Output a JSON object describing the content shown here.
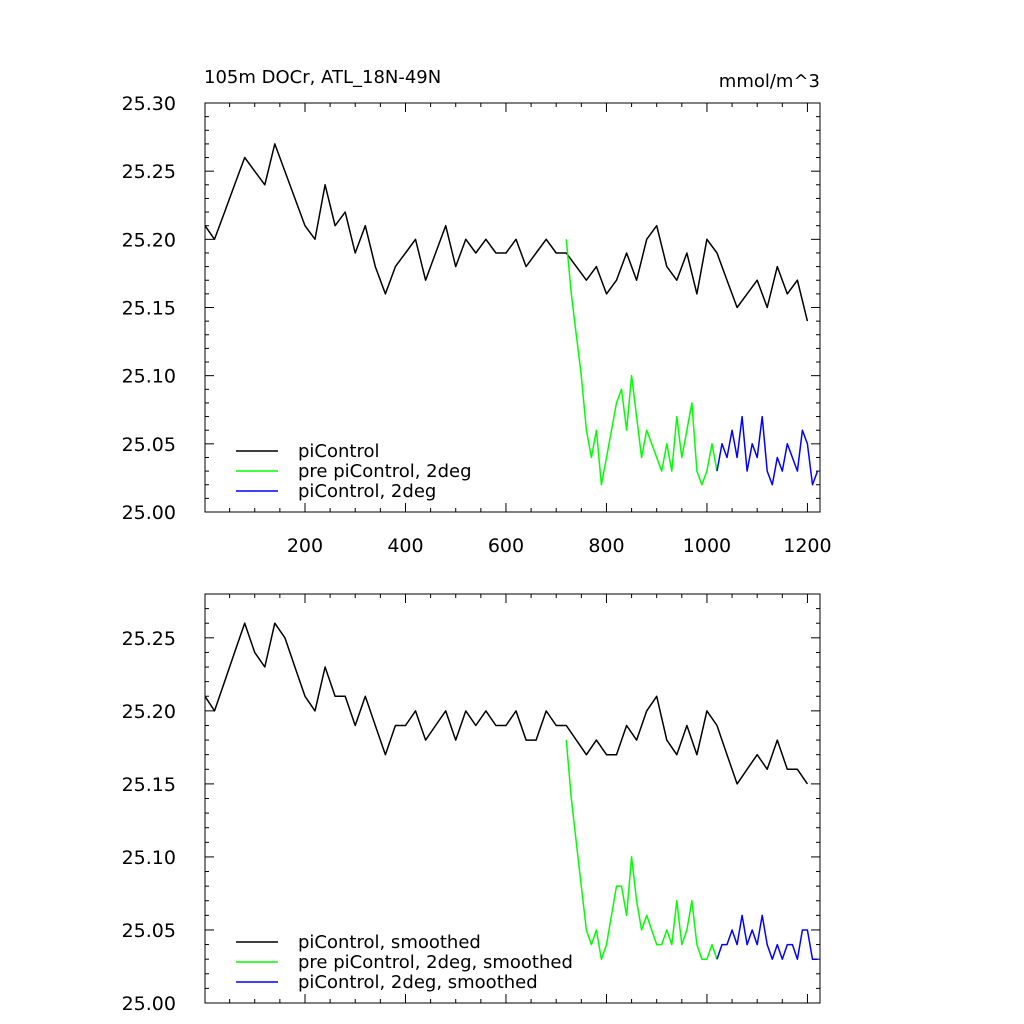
{
  "chart_data": [
    {
      "type": "line",
      "title": "105m DOCr, ATL_18N-49N",
      "units": "mmol/m^3",
      "xlim": [
        1,
        1225
      ],
      "ylim": [
        25.0,
        25.3
      ],
      "xticks": [
        200,
        400,
        600,
        800,
        1000,
        1200
      ],
      "yticks": [
        25.0,
        25.05,
        25.1,
        25.15,
        25.2,
        25.25,
        25.3
      ],
      "x_tick_labels": [
        "200",
        "400",
        "600",
        "800",
        "1000",
        "1200"
      ],
      "y_tick_labels": [
        "25.00",
        "25.05",
        "25.10",
        "25.15",
        "25.20",
        "25.25",
        "25.30"
      ],
      "legend_position": "bottom-left",
      "grid": false,
      "series": [
        {
          "name": "piControl",
          "color": "#000000",
          "x": [
            1,
            20,
            40,
            60,
            80,
            100,
            120,
            140,
            160,
            180,
            200,
            220,
            240,
            260,
            280,
            300,
            320,
            340,
            360,
            380,
            400,
            420,
            440,
            460,
            480,
            500,
            520,
            540,
            560,
            580,
            600,
            620,
            640,
            660,
            680,
            700,
            720,
            740,
            760,
            780,
            800,
            820,
            840,
            860,
            880,
            900,
            920,
            940,
            960,
            980,
            1000,
            1020,
            1040,
            1060,
            1080,
            1100,
            1120,
            1140,
            1160,
            1180,
            1200
          ],
          "y": [
            25.21,
            25.2,
            25.22,
            25.24,
            25.26,
            25.25,
            25.24,
            25.27,
            25.25,
            25.23,
            25.21,
            25.2,
            25.24,
            25.21,
            25.22,
            25.19,
            25.21,
            25.18,
            25.16,
            25.18,
            25.19,
            25.2,
            25.17,
            25.19,
            25.21,
            25.18,
            25.2,
            25.19,
            25.2,
            25.19,
            25.19,
            25.2,
            25.18,
            25.19,
            25.2,
            25.19,
            25.19,
            25.18,
            25.17,
            25.18,
            25.16,
            25.17,
            25.19,
            25.17,
            25.2,
            25.21,
            25.18,
            25.17,
            25.19,
            25.16,
            25.2,
            25.19,
            25.17,
            25.15,
            25.16,
            25.17,
            25.15,
            25.18,
            25.16,
            25.17,
            25.14
          ]
        },
        {
          "name": "pre piControl, 2deg",
          "color": "#00ff00",
          "x": [
            720,
            730,
            740,
            750,
            760,
            770,
            780,
            790,
            800,
            810,
            820,
            830,
            840,
            850,
            860,
            870,
            880,
            890,
            900,
            910,
            920,
            930,
            940,
            950,
            960,
            970,
            980,
            990,
            1000,
            1010,
            1020
          ],
          "y": [
            25.2,
            25.16,
            25.13,
            25.1,
            25.06,
            25.04,
            25.06,
            25.02,
            25.04,
            25.06,
            25.08,
            25.09,
            25.06,
            25.1,
            25.07,
            25.04,
            25.06,
            25.05,
            25.04,
            25.03,
            25.05,
            25.03,
            25.07,
            25.04,
            25.06,
            25.08,
            25.03,
            25.02,
            25.03,
            25.05,
            25.03
          ]
        },
        {
          "name": "piControl, 2deg",
          "color": "#0000ff",
          "x": [
            1020,
            1030,
            1040,
            1050,
            1060,
            1070,
            1080,
            1090,
            1100,
            1110,
            1120,
            1130,
            1140,
            1150,
            1160,
            1170,
            1180,
            1190,
            1200,
            1210,
            1220
          ],
          "y": [
            25.03,
            25.05,
            25.04,
            25.06,
            25.04,
            25.07,
            25.03,
            25.05,
            25.04,
            25.07,
            25.03,
            25.02,
            25.04,
            25.03,
            25.05,
            25.04,
            25.03,
            25.06,
            25.05,
            25.02,
            25.03
          ]
        }
      ]
    },
    {
      "type": "line",
      "title": "",
      "xlim": [
        1,
        1225
      ],
      "ylim": [
        25.0,
        25.28
      ],
      "xticks": [
        200,
        400,
        600,
        800,
        1000,
        1200
      ],
      "yticks": [
        25.0,
        25.05,
        25.1,
        25.15,
        25.2,
        25.25
      ],
      "x_tick_labels": [],
      "y_tick_labels": [
        "25.00",
        "25.05",
        "25.10",
        "25.15",
        "25.20",
        "25.25"
      ],
      "legend_position": "bottom-left",
      "grid": false,
      "series": [
        {
          "name": "piControl, smoothed",
          "color": "#000000",
          "x": [
            1,
            20,
            40,
            60,
            80,
            100,
            120,
            140,
            160,
            180,
            200,
            220,
            240,
            260,
            280,
            300,
            320,
            340,
            360,
            380,
            400,
            420,
            440,
            460,
            480,
            500,
            520,
            540,
            560,
            580,
            600,
            620,
            640,
            660,
            680,
            700,
            720,
            740,
            760,
            780,
            800,
            820,
            840,
            860,
            880,
            900,
            920,
            940,
            960,
            980,
            1000,
            1020,
            1040,
            1060,
            1080,
            1100,
            1120,
            1140,
            1160,
            1180,
            1200
          ],
          "y": [
            25.21,
            25.2,
            25.22,
            25.24,
            25.26,
            25.24,
            25.23,
            25.26,
            25.25,
            25.23,
            25.21,
            25.2,
            25.23,
            25.21,
            25.21,
            25.19,
            25.21,
            25.19,
            25.17,
            25.19,
            25.19,
            25.2,
            25.18,
            25.19,
            25.2,
            25.18,
            25.2,
            25.19,
            25.2,
            25.19,
            25.19,
            25.2,
            25.18,
            25.18,
            25.2,
            25.19,
            25.19,
            25.18,
            25.17,
            25.18,
            25.17,
            25.17,
            25.19,
            25.18,
            25.2,
            25.21,
            25.18,
            25.17,
            25.19,
            25.17,
            25.2,
            25.19,
            25.17,
            25.15,
            25.16,
            25.17,
            25.16,
            25.18,
            25.16,
            25.16,
            25.15
          ]
        },
        {
          "name": "pre piControl, 2deg, smoothed",
          "color": "#00ff00",
          "x": [
            720,
            730,
            740,
            750,
            760,
            770,
            780,
            790,
            800,
            810,
            820,
            830,
            840,
            850,
            860,
            870,
            880,
            890,
            900,
            910,
            920,
            930,
            940,
            950,
            960,
            970,
            980,
            990,
            1000,
            1010,
            1020
          ],
          "y": [
            25.18,
            25.14,
            25.11,
            25.08,
            25.05,
            25.04,
            25.05,
            25.03,
            25.04,
            25.06,
            25.08,
            25.08,
            25.06,
            25.1,
            25.07,
            25.05,
            25.06,
            25.05,
            25.04,
            25.04,
            25.05,
            25.04,
            25.07,
            25.04,
            25.05,
            25.07,
            25.04,
            25.03,
            25.03,
            25.04,
            25.03
          ]
        },
        {
          "name": "piControl, 2deg, smoothed",
          "color": "#0000ff",
          "x": [
            1020,
            1030,
            1040,
            1050,
            1060,
            1070,
            1080,
            1090,
            1100,
            1110,
            1120,
            1130,
            1140,
            1150,
            1160,
            1170,
            1180,
            1190,
            1200,
            1210,
            1220
          ],
          "y": [
            25.03,
            25.04,
            25.04,
            25.05,
            25.04,
            25.06,
            25.04,
            25.05,
            25.04,
            25.06,
            25.04,
            25.03,
            25.04,
            25.03,
            25.04,
            25.04,
            25.03,
            25.05,
            25.05,
            25.03,
            25.03
          ]
        }
      ]
    }
  ]
}
